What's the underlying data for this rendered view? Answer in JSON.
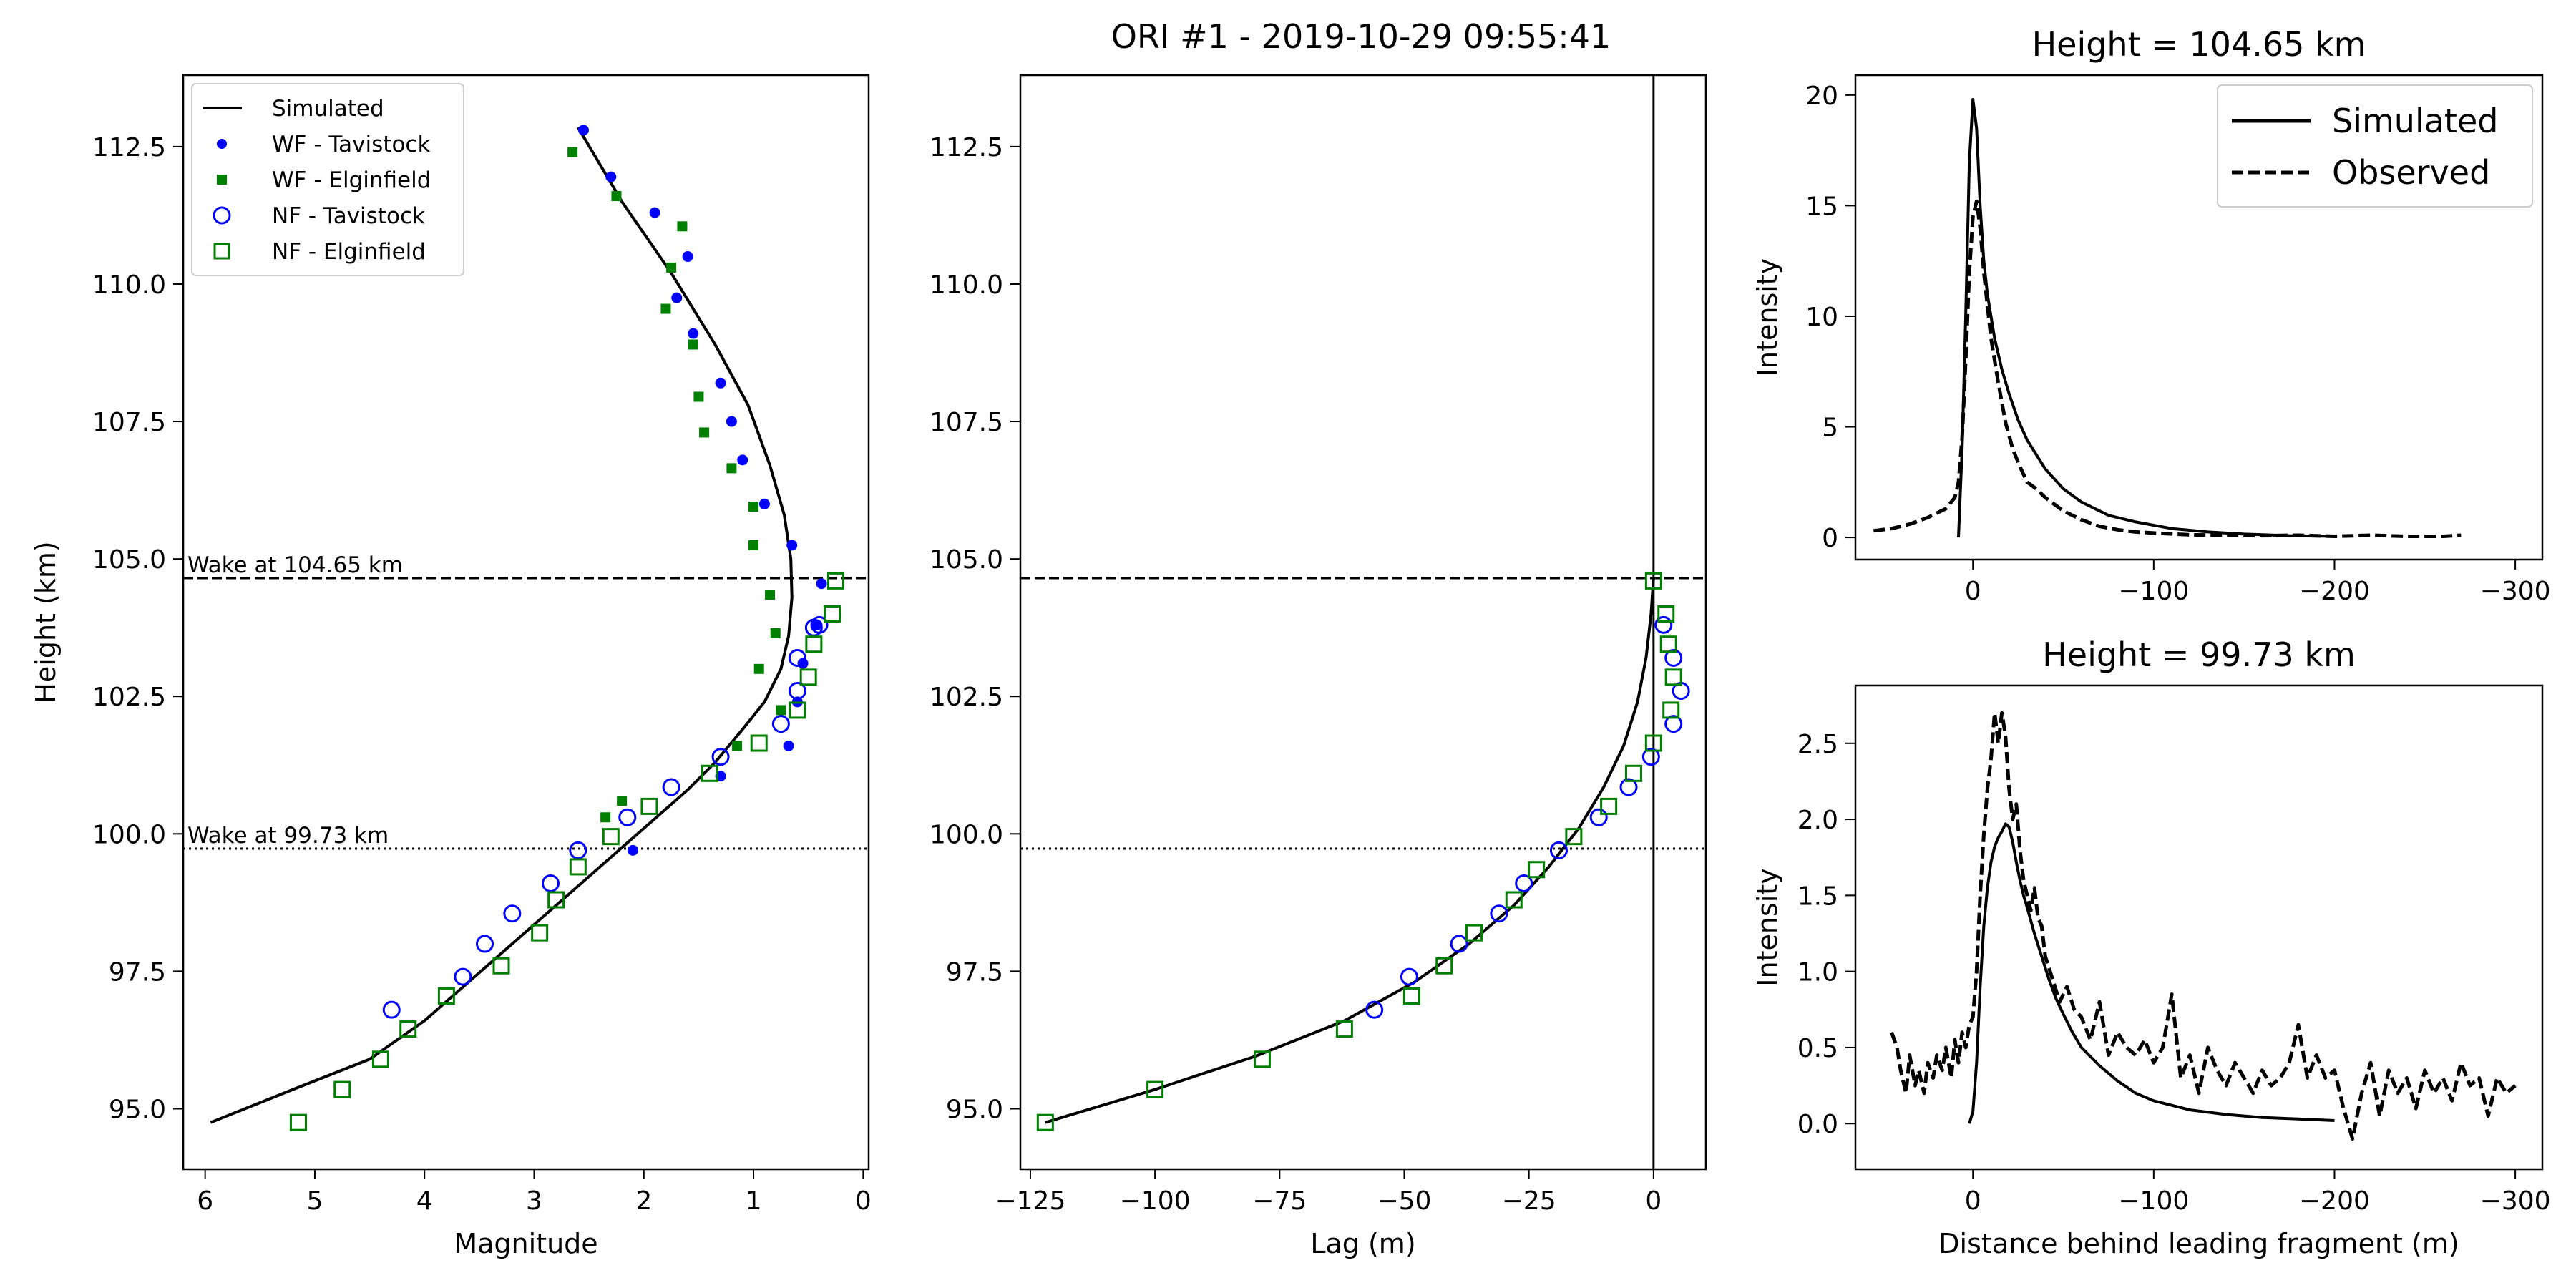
{
  "suptitle": "ORI #1 - 2019-10-29 09:55:41",
  "chart_data": [
    {
      "id": "magnitude",
      "type": "scatter",
      "xlabel": "Magnitude",
      "ylabel": "Height (km)",
      "xlim": [
        6.2,
        -0.05
      ],
      "ylim": [
        93.9,
        113.8
      ],
      "x_ticks": [
        6,
        5,
        4,
        3,
        2,
        1,
        0
      ],
      "y_ticks": [
        95.0,
        97.5,
        100.0,
        102.5,
        105.0,
        107.5,
        110.0,
        112.5
      ],
      "x_tick_labels": [
        "6",
        "5",
        "4",
        "3",
        "2",
        "1",
        "0"
      ],
      "y_tick_labels": [
        "95.0",
        "97.5",
        "100.0",
        "102.5",
        "105.0",
        "107.5",
        "110.0",
        "112.5"
      ],
      "hlines": [
        {
          "y": 104.65,
          "style": "dashed",
          "label": "Wake at 104.65 km"
        },
        {
          "y": 99.73,
          "style": "dotted",
          "label": "Wake at 99.73 km"
        }
      ],
      "legend": {
        "position": "top-left",
        "entries": [
          "Simulated",
          "WF - Tavistock",
          "WF - Elginfield",
          "NF - Tavistock",
          "NF - Elginfield"
        ]
      },
      "series": [
        {
          "name": "Simulated",
          "marker": "line",
          "color": "#000000",
          "x": [
            5.95,
            5.2,
            4.5,
            4.0,
            3.6,
            3.2,
            2.8,
            2.4,
            2.0,
            1.6,
            1.35,
            1.1,
            0.9,
            0.75,
            0.68,
            0.65,
            0.66,
            0.72,
            0.85,
            1.05,
            1.35,
            1.75,
            2.2,
            2.6
          ],
          "y": [
            94.75,
            95.35,
            95.9,
            96.6,
            97.3,
            98.0,
            98.7,
            99.4,
            100.1,
            100.8,
            101.3,
            101.9,
            102.4,
            103.0,
            103.6,
            104.3,
            105.0,
            105.8,
            106.7,
            107.8,
            108.9,
            110.2,
            111.5,
            112.85
          ]
        },
        {
          "name": "WF - Tavistock",
          "marker": "dot",
          "color": "#0000ff",
          "x": [
            2.55,
            2.3,
            1.9,
            1.6,
            1.7,
            1.55,
            1.3,
            1.2,
            1.1,
            0.9,
            0.65,
            0.38,
            0.42,
            0.55,
            0.6,
            0.68,
            2.1,
            1.3
          ],
          "y": [
            112.8,
            111.95,
            111.3,
            110.5,
            109.75,
            109.1,
            108.2,
            107.5,
            106.8,
            106.0,
            105.25,
            104.55,
            103.8,
            103.1,
            102.4,
            101.6,
            99.7,
            101.05
          ]
        },
        {
          "name": "WF - Elginfield",
          "marker": "square-filled",
          "color": "#008000",
          "x": [
            2.65,
            2.25,
            1.65,
            1.75,
            1.8,
            1.55,
            1.5,
            1.45,
            1.2,
            1.0,
            1.0,
            0.85,
            0.8,
            0.95,
            0.75,
            1.15,
            2.2,
            2.35
          ],
          "y": [
            112.4,
            111.6,
            111.05,
            110.3,
            109.55,
            108.9,
            107.95,
            107.3,
            106.65,
            105.95,
            105.25,
            104.35,
            103.65,
            103.0,
            102.25,
            101.6,
            100.6,
            100.3
          ]
        },
        {
          "name": "NF - Tavistock",
          "marker": "circle-open",
          "color": "#0000ff",
          "x": [
            4.3,
            3.65,
            3.45,
            3.2,
            2.85,
            2.6,
            2.15,
            1.75,
            1.3,
            0.75,
            0.6,
            0.6,
            0.45,
            0.4
          ],
          "y": [
            96.8,
            97.4,
            98.0,
            98.55,
            99.1,
            99.7,
            100.3,
            100.85,
            101.4,
            102.0,
            102.6,
            103.2,
            103.75,
            103.8
          ]
        },
        {
          "name": "NF - Elginfield",
          "marker": "square-open",
          "color": "#008000",
          "x": [
            5.15,
            4.75,
            4.4,
            4.15,
            3.8,
            3.3,
            2.95,
            2.8,
            2.6,
            2.3,
            1.95,
            1.4,
            0.95,
            0.6,
            0.5,
            0.45,
            0.28,
            0.25
          ],
          "y": [
            94.75,
            95.35,
            95.9,
            96.45,
            97.05,
            97.6,
            98.2,
            98.8,
            99.4,
            99.95,
            100.5,
            101.1,
            101.65,
            102.25,
            102.85,
            103.45,
            104.0,
            104.6
          ]
        }
      ]
    },
    {
      "id": "lag",
      "type": "scatter",
      "xlabel": "Lag (m)",
      "ylabel": "",
      "xlim": [
        -127,
        10.5
      ],
      "ylim": [
        93.9,
        113.8
      ],
      "x_ticks": [
        -125,
        -100,
        -75,
        -50,
        -25,
        0
      ],
      "y_ticks": [
        95.0,
        97.5,
        100.0,
        102.5,
        105.0,
        107.5,
        110.0,
        112.5
      ],
      "x_tick_labels": [
        "−125",
        "−100",
        "−75",
        "−50",
        "−25",
        "0"
      ],
      "y_tick_labels": [
        "95.0",
        "97.5",
        "100.0",
        "102.5",
        "105.0",
        "107.5",
        "110.0",
        "112.5"
      ],
      "hlines": [
        {
          "y": 104.65,
          "style": "dashed"
        },
        {
          "y": 99.73,
          "style": "dotted"
        }
      ],
      "vlines": [
        {
          "x": 0,
          "style": "solid"
        }
      ],
      "series": [
        {
          "name": "Simulated",
          "marker": "line",
          "color": "#000000",
          "x": [
            -122,
            -100,
            -80,
            -62,
            -48,
            -37,
            -28,
            -21,
            -15,
            -10,
            -6,
            -3.2,
            -1.5,
            -0.5,
            0
          ],
          "y": [
            94.75,
            95.35,
            95.95,
            96.6,
            97.3,
            98.0,
            98.7,
            99.4,
            100.1,
            100.85,
            101.6,
            102.4,
            103.2,
            104.0,
            104.65
          ]
        },
        {
          "name": "NF - Tavistock",
          "marker": "circle-open",
          "color": "#0000ff",
          "x": [
            -56,
            -49,
            -39,
            -31,
            -26,
            -19,
            -11,
            -5,
            -0.5,
            4,
            5.5,
            4,
            2
          ],
          "y": [
            96.8,
            97.4,
            98.0,
            98.55,
            99.1,
            99.7,
            100.3,
            100.85,
            101.4,
            102.0,
            102.6,
            103.2,
            103.8
          ]
        },
        {
          "name": "NF - Elginfield",
          "marker": "square-open",
          "color": "#008000",
          "x": [
            -122,
            -100,
            -78.5,
            -62,
            -48.5,
            -42,
            -36,
            -28,
            -23.5,
            -16,
            -9,
            -4,
            0,
            3.5,
            4,
            3,
            2.5,
            0
          ],
          "y": [
            94.75,
            95.35,
            95.9,
            96.45,
            97.05,
            97.6,
            98.2,
            98.8,
            99.35,
            99.95,
            100.5,
            101.1,
            101.65,
            102.25,
            102.85,
            103.45,
            104.0,
            104.6
          ]
        }
      ]
    },
    {
      "id": "wake-104",
      "type": "line",
      "title": "Height = 104.65 km",
      "xlabel": "",
      "ylabel": "Intensity",
      "xlim": [
        65,
        -315
      ],
      "ylim": [
        -1,
        20.9
      ],
      "x_ticks": [
        0,
        -100,
        -200,
        -300
      ],
      "y_ticks": [
        0,
        5,
        10,
        15,
        20
      ],
      "x_tick_labels": [
        "0",
        "−100",
        "−200",
        "−300"
      ],
      "y_tick_labels": [
        "0",
        "5",
        "10",
        "15",
        "20"
      ],
      "legend": {
        "position": "top-right",
        "entries": [
          "Simulated",
          "Observed"
        ]
      },
      "series": [
        {
          "name": "Simulated",
          "style": "solid",
          "color": "#000000",
          "x": [
            8,
            6,
            4,
            2,
            0,
            -2,
            -4,
            -6,
            -8,
            -12,
            -16,
            -20,
            -25,
            -30,
            -40,
            -50,
            -60,
            -75,
            -90,
            -110,
            -130,
            -150,
            -175,
            -200
          ],
          "y": [
            0.0,
            4.0,
            10.0,
            17.0,
            19.8,
            18.5,
            15.0,
            12.5,
            11.0,
            9.0,
            7.6,
            6.5,
            5.3,
            4.4,
            3.1,
            2.2,
            1.6,
            1.0,
            0.7,
            0.4,
            0.25,
            0.15,
            0.08,
            0.05
          ]
        },
        {
          "name": "Observed",
          "style": "dashed",
          "color": "#000000",
          "x": [
            55,
            45,
            35,
            25,
            15,
            10,
            8,
            6,
            4,
            2,
            0,
            -2,
            -4,
            -6,
            -8,
            -10,
            -14,
            -18,
            -22,
            -26,
            -30,
            -35,
            -40,
            -50,
            -60,
            -70,
            -80,
            -90,
            -100,
            -120,
            -140,
            -160,
            -180,
            -200,
            -220,
            -240,
            -260,
            -270
          ],
          "y": [
            0.3,
            0.4,
            0.6,
            0.9,
            1.3,
            1.8,
            2.5,
            4.5,
            8.0,
            12.0,
            14.5,
            15.2,
            14.0,
            12.0,
            10.5,
            9.0,
            7.0,
            5.2,
            4.0,
            3.2,
            2.5,
            2.2,
            1.8,
            1.2,
            0.8,
            0.5,
            0.35,
            0.25,
            0.2,
            0.12,
            0.1,
            0.08,
            0.1,
            0.05,
            0.1,
            0.05,
            0.05,
            0.1
          ]
        }
      ]
    },
    {
      "id": "wake-99",
      "type": "line",
      "title": "Height = 99.73 km",
      "xlabel": "Distance behind leading fragment (m)",
      "ylabel": "Intensity",
      "xlim": [
        65,
        -315
      ],
      "ylim": [
        -0.3,
        2.88
      ],
      "x_ticks": [
        0,
        -100,
        -200,
        -300
      ],
      "y_ticks": [
        0.0,
        0.5,
        1.0,
        1.5,
        2.0,
        2.5
      ],
      "x_tick_labels": [
        "0",
        "−100",
        "−200",
        "−300"
      ],
      "y_tick_labels": [
        "0.0",
        "0.5",
        "1.0",
        "1.5",
        "2.0",
        "2.5"
      ],
      "series": [
        {
          "name": "Simulated",
          "style": "solid",
          "color": "#000000",
          "x": [
            2,
            0,
            -2,
            -4,
            -6,
            -8,
            -10,
            -12,
            -14,
            -16,
            -18,
            -20,
            -22,
            -24,
            -26,
            -28,
            -30,
            -34,
            -38,
            -42,
            -46,
            -50,
            -55,
            -60,
            -70,
            -80,
            -90,
            -100,
            -120,
            -140,
            -160,
            -180,
            -200
          ],
          "y": [
            0.0,
            0.08,
            0.4,
            0.9,
            1.3,
            1.55,
            1.72,
            1.82,
            1.88,
            1.92,
            1.97,
            1.95,
            1.85,
            1.72,
            1.6,
            1.5,
            1.42,
            1.25,
            1.1,
            0.95,
            0.82,
            0.72,
            0.6,
            0.5,
            0.38,
            0.28,
            0.2,
            0.15,
            0.09,
            0.06,
            0.04,
            0.03,
            0.02
          ]
        },
        {
          "name": "Observed",
          "style": "dashed",
          "color": "#000000",
          "x": [
            45,
            42,
            40,
            37,
            35,
            32,
            30,
            27,
            25,
            22,
            20,
            17,
            15,
            12,
            10,
            8,
            6,
            4,
            2,
            0,
            -2,
            -4,
            -6,
            -8,
            -10,
            -12,
            -14,
            -16,
            -18,
            -20,
            -22,
            -24,
            -26,
            -28,
            -30,
            -32,
            -34,
            -36,
            -38,
            -40,
            -44,
            -48,
            -52,
            -56,
            -60,
            -65,
            -70,
            -75,
            -80,
            -85,
            -90,
            -95,
            -100,
            -105,
            -110,
            -115,
            -120,
            -125,
            -130,
            -135,
            -140,
            -145,
            -150,
            -155,
            -160,
            -165,
            -170,
            -175,
            -180,
            -185,
            -190,
            -195,
            -200,
            -205,
            -210,
            -215,
            -220,
            -225,
            -230,
            -235,
            -240,
            -245,
            -250,
            -255,
            -260,
            -265,
            -270,
            -275,
            -280,
            -285,
            -290,
            -295,
            -300
          ],
          "y": [
            0.6,
            0.5,
            0.35,
            0.2,
            0.45,
            0.25,
            0.35,
            0.2,
            0.4,
            0.3,
            0.45,
            0.35,
            0.5,
            0.3,
            0.55,
            0.4,
            0.6,
            0.5,
            0.65,
            0.7,
            1.0,
            1.5,
            1.9,
            2.2,
            2.4,
            2.7,
            2.5,
            2.7,
            2.55,
            2.2,
            2.0,
            2.1,
            1.8,
            1.6,
            1.5,
            1.4,
            1.55,
            1.35,
            1.3,
            1.1,
            0.95,
            0.8,
            0.9,
            0.75,
            0.7,
            0.55,
            0.8,
            0.45,
            0.6,
            0.5,
            0.45,
            0.55,
            0.4,
            0.5,
            0.85,
            0.3,
            0.45,
            0.2,
            0.5,
            0.35,
            0.25,
            0.4,
            0.3,
            0.2,
            0.35,
            0.25,
            0.3,
            0.4,
            0.65,
            0.3,
            0.45,
            0.3,
            0.35,
            0.1,
            -0.1,
            0.2,
            0.4,
            0.05,
            0.35,
            0.2,
            0.3,
            0.1,
            0.35,
            0.2,
            0.3,
            0.15,
            0.4,
            0.25,
            0.3,
            0.05,
            0.3,
            0.2,
            0.25
          ]
        }
      ]
    }
  ]
}
